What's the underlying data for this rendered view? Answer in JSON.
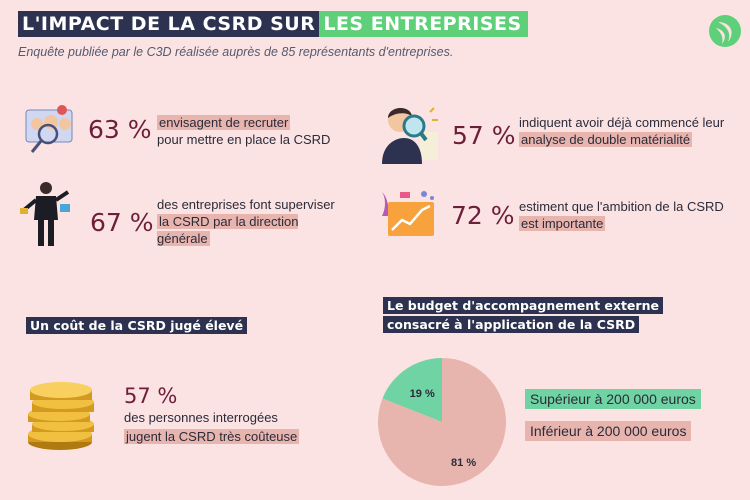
{
  "header": {
    "title_part1": "L'IMPACT DE LA CSRD SUR",
    "title_part2": "LES ENTREPRISES",
    "subtitle": "Enquête publiée par le C3D réalisée auprès de 85 représentants d'entreprises."
  },
  "stats": [
    {
      "percent": "63 %",
      "text": "",
      "highlight": "envisagent de recruter",
      "after": "pour mettre en place la CSRD"
    },
    {
      "percent": "57 %",
      "text": "indiquent avoir déjà commencé leur",
      "highlight": "analyse de double matérialité",
      "after": ""
    },
    {
      "percent": "67 %",
      "text": "des entreprises font superviser",
      "highlight": "la CSRD par la direction générale",
      "after": ""
    },
    {
      "percent": "72 %",
      "text": "estiment que l'ambition de la CSRD",
      "highlight": "est importante",
      "after": ""
    }
  ],
  "cost_section": {
    "label": "Un coût de la CSRD jugé élevé",
    "percent": "57 %",
    "text": "des personnes interrogées",
    "highlight": "jugent la CSRD très coûteuse"
  },
  "budget_section": {
    "label_line1": "Le budget d'accompagnement externe",
    "label_line2": "consacré à l'application de la CSRD"
  },
  "chart_data": {
    "type": "pie",
    "title": "Le budget d'accompagnement externe consacré à l'application de la CSRD",
    "slices": [
      {
        "label": "Supérieur à 200 000 euros",
        "value": 19,
        "display": "19 %",
        "color": "#6fd3a4"
      },
      {
        "label": "Inférieur à 200 000 euros",
        "value": 81,
        "display": "81 %",
        "color": "#e8b4ae"
      }
    ]
  },
  "colors": {
    "background": "#fbe3e3",
    "dark": "#2d3250",
    "green": "#5fd07a",
    "highlight": "#e8b4ae",
    "percent": "#6d1f3a"
  }
}
